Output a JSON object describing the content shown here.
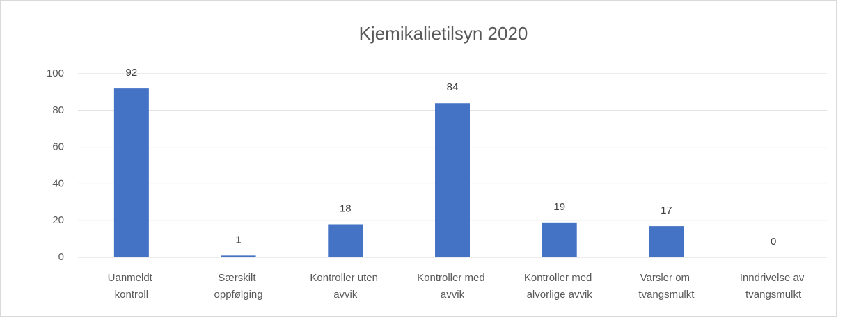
{
  "chart_data": {
    "type": "bar",
    "title": "Kjemikalietilsyn 2020",
    "categories": [
      "Uanmeldt kontroll",
      "Særskilt oppfølging",
      "Kontroller uten avvik",
      "Kontroller med avvik",
      "Kontroller med alvorlige avvik",
      "Varsler om tvangsmulkt",
      "Inndrivelse av tvangsmulkt"
    ],
    "values": [
      92,
      1,
      18,
      84,
      19,
      17,
      0
    ],
    "color": "#4472c4",
    "ylim": [
      0,
      100
    ],
    "yticks": [
      0,
      20,
      40,
      60,
      80,
      100
    ],
    "grid": true
  }
}
